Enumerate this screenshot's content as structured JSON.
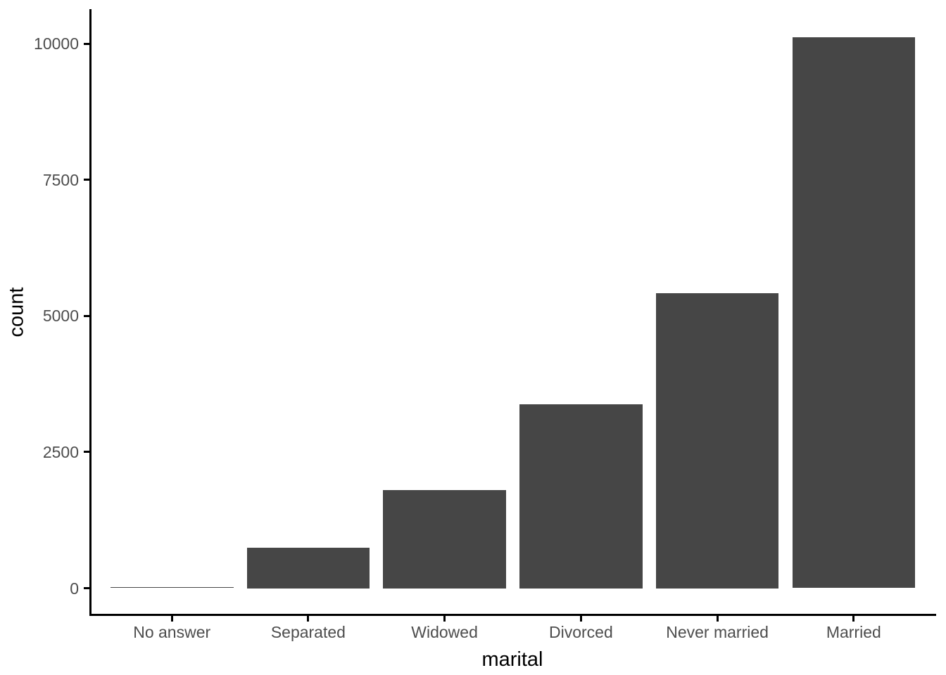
{
  "chart_data": {
    "type": "bar",
    "title": "",
    "xlabel": "marital",
    "ylabel": "count",
    "categories": [
      "No answer",
      "Separated",
      "Widowed",
      "Divorced",
      "Never married",
      "Married"
    ],
    "values": [
      17,
      743,
      1807,
      3383,
      5416,
      10117
    ],
    "yticks": [
      0,
      2500,
      5000,
      7500,
      10000
    ],
    "ytick_labels": [
      "0",
      "2500",
      "5000",
      "7500",
      "10000"
    ],
    "ylim": [
      0,
      10000
    ],
    "grid": false,
    "legend": "none",
    "bar_color": "#464646",
    "axis_text_color": "#4D4D4D",
    "axis_line_color": "#000000",
    "background_color": "#FFFFFF"
  }
}
